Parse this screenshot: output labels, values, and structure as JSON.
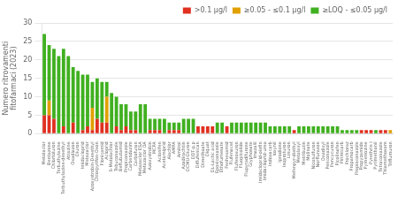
{
  "chart_data": {
    "type": "bar",
    "stacked": true,
    "categories": [
      "Metolaclor",
      "Bentazone",
      "Chlortoluron",
      "Terbuthylazine",
      "Terbuthylazine-desethyl",
      "Atrazine",
      "Oxadiazon",
      "Diuron",
      "Imidacloprid",
      "Metazaclor",
      "Azoxystrobin-Desethyl",
      "Chlorpyrifos-Oxon",
      "Flonicamid",
      "Acloprid",
      "S-Metolachlor",
      "Tebuconazole",
      "Beflubutamid",
      "Propiconazole",
      "Carbendazim",
      "Carbofuran",
      "Metazaclor ESA",
      "Metazaclor OA",
      "Azoxystrobin",
      "MCPA",
      "Aclonifen",
      "Acetamiprid",
      "Alachlor",
      "AMPA",
      "Amitrol",
      "Azadirachtin",
      "DCMU-Diuron",
      "DDT-p,p",
      "Diflufenican",
      "Dimethoate",
      "Diquat",
      "DL-Lactic acid",
      "Epoxiconazole",
      "Ethofumesate",
      "Fenhexamid",
      "Flufenacet",
      "Flufenoxuron",
      "Fluopicolide",
      "Flupyradifurone",
      "Glyphosate",
      "Imazalil",
      "Imidacloprid-olefin",
      "Imidacloprid-urea",
      "Indoxacarb",
      "Ioxynil",
      "Iprodione",
      "Isoproturon",
      "Linuron",
      "Mefenpyr-diethyl",
      "Metalaxyl",
      "Metribuzin",
      "Molinate",
      "Nicosulfuron",
      "Norflurazon",
      "Oxadixyl",
      "Penconazole",
      "Pencycuron",
      "Picolinafen",
      "Pirimicarb",
      "Prochloraz",
      "Propamocarb",
      "Propioconazole",
      "Propyzamide",
      "Pymetrozine",
      "Pyrethrin I",
      "Pyrimethanil",
      "Tetraconazole",
      "Thiamethoxam",
      "Triflumuron"
    ],
    "series": [
      {
        "name": ">0.1 μg/l",
        "color": "#e03020",
        "values": [
          5,
          5,
          4,
          0,
          2,
          0,
          3,
          0,
          1,
          2,
          1,
          4,
          3,
          3,
          0,
          2,
          1,
          2,
          1,
          1,
          0,
          0,
          1,
          1,
          1,
          0,
          1,
          1,
          1,
          0,
          0,
          0,
          2,
          2,
          2,
          2,
          0,
          0,
          2,
          0,
          0,
          0,
          0,
          0,
          0,
          0,
          0,
          0,
          0,
          0,
          0,
          0,
          1,
          0,
          0,
          0,
          0,
          0,
          0,
          0,
          0,
          0,
          0,
          0,
          0,
          0,
          1,
          1,
          1,
          0,
          1,
          1,
          0
        ]
      },
      {
        "name": "≥0.05 - ≤0.1 μg/l",
        "color": "#e0a000",
        "values": [
          0,
          4,
          0,
          0,
          0,
          0,
          0,
          0,
          0,
          0,
          6,
          0,
          0,
          7,
          0,
          0,
          0,
          0,
          0,
          0,
          0,
          0,
          0,
          0,
          0,
          0,
          0,
          0,
          0,
          0,
          0,
          0,
          0,
          0,
          0,
          0,
          0,
          0,
          0,
          0,
          0,
          0,
          0,
          0,
          0,
          0,
          0,
          0,
          0,
          0,
          0,
          0,
          0,
          0,
          0,
          0,
          0,
          0,
          0,
          0,
          0,
          0,
          0,
          0,
          0,
          0,
          0,
          0,
          0,
          0,
          0,
          0,
          1
        ]
      },
      {
        "name": "≥LOQ - ≤0.05 μg/l",
        "color": "#40b020",
        "values": [
          22,
          15,
          19,
          21,
          21,
          21,
          15,
          17,
          15,
          14,
          7,
          11,
          11,
          4,
          11,
          8,
          7,
          6,
          5,
          5,
          8,
          8,
          3,
          3,
          3,
          4,
          2,
          2,
          2,
          4,
          4,
          4,
          0,
          0,
          0,
          0,
          3,
          3,
          0,
          3,
          3,
          3,
          3,
          3,
          3,
          3,
          3,
          2,
          2,
          2,
          2,
          2,
          0,
          2,
          2,
          2,
          2,
          2,
          2,
          2,
          2,
          2,
          1,
          1,
          1,
          1,
          0,
          0,
          0,
          1,
          0,
          0,
          0
        ]
      }
    ],
    "ylabel": "Numero ritrovamenti\nfitofarmaci (2023)",
    "ylim": [
      0,
      30
    ],
    "yticks": [
      0,
      5,
      10,
      15,
      20,
      25,
      30
    ],
    "grid": true,
    "legend": "upper right"
  }
}
